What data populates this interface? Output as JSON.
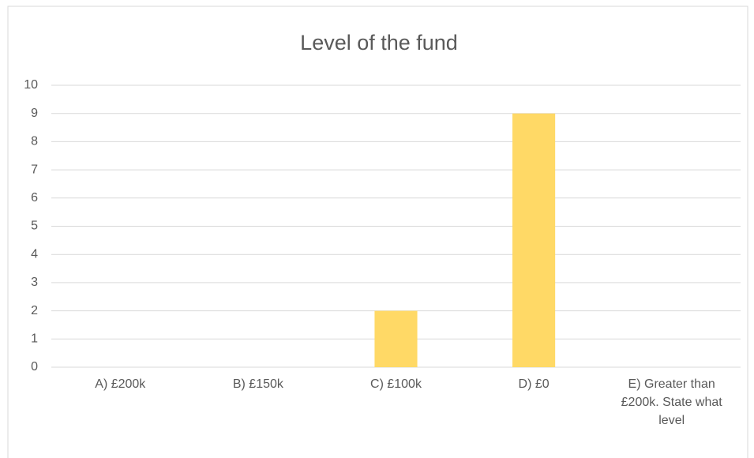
{
  "chart_data": {
    "type": "bar",
    "title": "Level of the fund",
    "categories": [
      "A) £200k",
      "B) £150k",
      "C) £100k",
      "D) £0",
      "E) Greater than £200k. State what level"
    ],
    "values": [
      0,
      0,
      2,
      9,
      0
    ],
    "color": "#ffd966",
    "ylim": [
      0,
      10
    ],
    "yticks": [
      0,
      1,
      2,
      3,
      4,
      5,
      6,
      7,
      8,
      9,
      10
    ],
    "grid": true
  }
}
